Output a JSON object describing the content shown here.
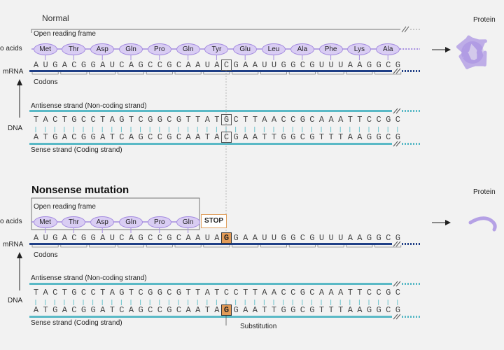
{
  "normal": {
    "title": "Normal",
    "orf_label": "Open reading frame",
    "amino_acids_label": "o acids",
    "amino_acids": [
      "Met",
      "Thr",
      "Asp",
      "Gln",
      "Pro",
      "Gln",
      "Tyr",
      "Glu",
      "Leu",
      "Ala",
      "Phe",
      "Lys",
      "Ala"
    ],
    "mrna_label": "mRNA",
    "mrna": "AUGACGGAUCAGCCGCAAUACGAAUUGGCGUUUAAGGCG",
    "codons_label": "Codons",
    "antisense_label": "Antisense strand (Non-coding strand)",
    "antisense": "TACTGCCTAGTCGGCGTTATGCTTAACCGCAAATTCCGC",
    "dna_label": "DNA",
    "sense": "ATGACGGATCAGCCGCAATACGAATTGGCGTTTAAGGCG",
    "sense_label": "Sense strand (Coding strand)",
    "protein_label": "Protein"
  },
  "mutation": {
    "title": "Nonsense mutation",
    "orf_label": "Open reading frame",
    "amino_acids_label": "o acids",
    "amino_acids": [
      "Met",
      "Thr",
      "Asp",
      "Gln",
      "Pro",
      "Gln"
    ],
    "stop_label": "STOP",
    "mrna_label": "mRNA",
    "mrna": "AUGACGGAUCAGCCGCAAUAGGAAUUGGCGUUUAAGGCG",
    "codons_label": "Codons",
    "antisense_label": "Antisense strand (Non-coding strand)",
    "antisense": "TACTGCCTAGTCGGCGTTATCCTTAACCGCAAATTCCGC",
    "dna_label": "DNA",
    "sense": "ATGACGGATCAGCCGCAATAGGAATTGGCGTTTAAGGCG",
    "sense_label": "Sense strand (Coding strand)",
    "substitution_label": "Substitution",
    "protein_label": "Protein"
  },
  "colors": {
    "aa_fill": "#d9cdf3",
    "aa_stroke": "#a58ce0",
    "mrna_bar": "#1f3f86",
    "dna_bar": "#5ab9c6",
    "highlight": "#e39b57",
    "protein": "#9b7fe0"
  }
}
